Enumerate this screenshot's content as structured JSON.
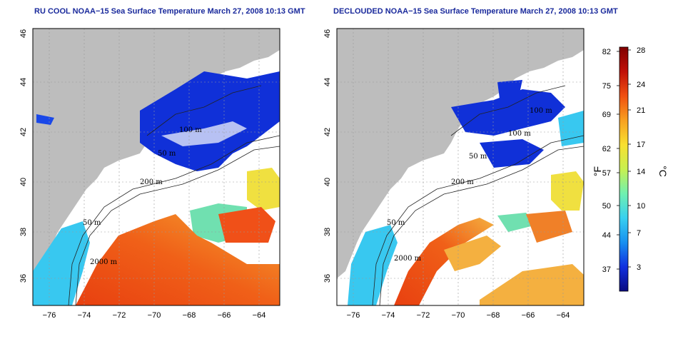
{
  "titles": {
    "left": "RU COOL NOAA−15 Sea Surface Temperature March 27, 2008 10:13 GMT",
    "right": "DECLOUDED NOAA−15 Sea Surface Temperature March 27, 2008 10:13 GMT"
  },
  "map": {
    "lon_ticks": [
      "−76",
      "−74",
      "−72",
      "−70",
      "−68",
      "−66",
      "−64"
    ],
    "lat_ticks": [
      "36",
      "38",
      "40",
      "42",
      "44",
      "46"
    ],
    "contour_labels_left": [
      "100 m",
      "50 m",
      "200 m",
      "50 m",
      "2000 m"
    ],
    "contour_labels_right": [
      "100 m",
      "100 m",
      "50 m",
      "200 m",
      "50 m",
      "2000 m"
    ],
    "colors": {
      "land": "#bdbdbd",
      "cloud_mask": "#ffffff",
      "cold": "#1030d8",
      "cool": "#38c8f0",
      "mild": "#70e0b0",
      "warm": "#f0a030",
      "hot": "#e84010"
    }
  },
  "colorbar": {
    "fahrenheit_ticks": [
      "82",
      "75",
      "69",
      "62",
      "57",
      "50",
      "44",
      "37"
    ],
    "celsius_ticks": [
      "28",
      "24",
      "21",
      "17",
      "14",
      "10",
      "7",
      "3"
    ],
    "unit_f": "°F",
    "unit_c": "°C",
    "colors": [
      "#0a0a80",
      "#1030e0",
      "#1890f0",
      "#38d0f0",
      "#70f0b0",
      "#c8f050",
      "#f8e030",
      "#f8a020",
      "#f05010",
      "#c01008",
      "#800000"
    ]
  }
}
